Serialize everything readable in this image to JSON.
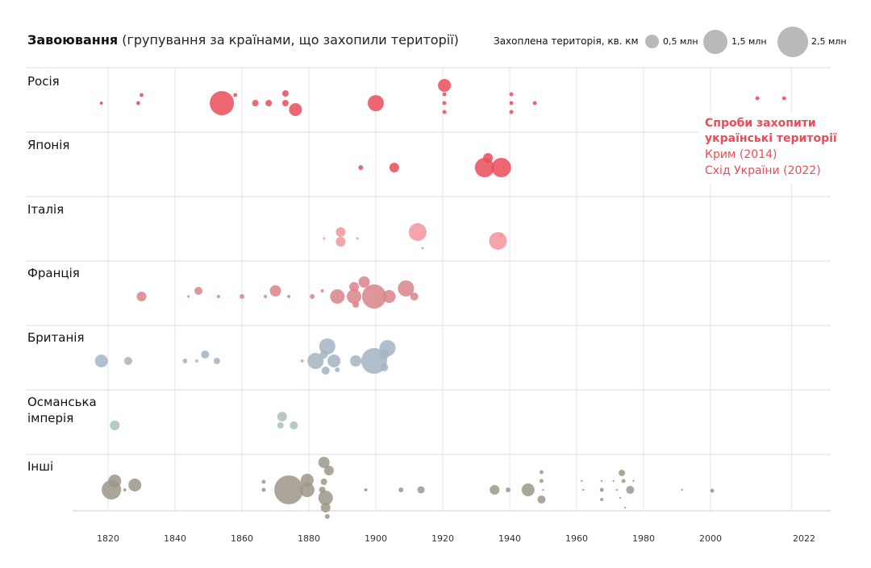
{
  "chart_data": {
    "type": "scatter",
    "title": "Завоювання",
    "subtitle": "(групування за країнами, що захопили території)",
    "xlabel": "",
    "ylabel": "",
    "xlim": [
      1815,
      2030
    ],
    "x_ticks": [
      "1820",
      "1840",
      "1860",
      "1880",
      "1900",
      "1920",
      "1940",
      "1960",
      "1980",
      "2000",
      "2022"
    ],
    "size_legend": {
      "title": "Захоплена територія, кв. км",
      "items": [
        {
          "label": "0,5 млн",
          "value": 0.5
        },
        {
          "label": "1,5 млн",
          "value": 1.5
        },
        {
          "label": "2,5 млн",
          "value": 2.5
        }
      ]
    },
    "annotation": {
      "title": "Спроби захопити українські території",
      "lines": [
        "Крим (2014)",
        "Схід України (2022)"
      ]
    },
    "series": [
      {
        "name": "Росія",
        "color": "#ea4c59",
        "points": [
          {
            "x": 1818,
            "r": 2
          },
          {
            "x": 1829,
            "r": 2.5
          },
          {
            "x": 1830,
            "r": 2.5,
            "dy": -10
          },
          {
            "x": 1854,
            "r": 15
          },
          {
            "x": 1858,
            "r": 2.5,
            "dy": -10
          },
          {
            "x": 1864,
            "r": 4
          },
          {
            "x": 1868,
            "r": 4
          },
          {
            "x": 1873,
            "r": 4
          },
          {
            "x": 1873,
            "r": 4,
            "dy": -12
          },
          {
            "x": 1876,
            "r": 8,
            "dy": 8
          },
          {
            "x": 1900,
            "r": 10
          },
          {
            "x": 1920.5,
            "r": 8,
            "dy": -22
          },
          {
            "x": 1920.5,
            "r": 2.5,
            "dy": -11
          },
          {
            "x": 1920.5,
            "r": 2.5
          },
          {
            "x": 1920.5,
            "r": 2.5,
            "dy": 11
          },
          {
            "x": 1940.5,
            "r": 2.5,
            "dy": -11
          },
          {
            "x": 1940.5,
            "r": 2.5
          },
          {
            "x": 1940.5,
            "r": 2.5,
            "dy": 11
          },
          {
            "x": 1947.5,
            "r": 2.5
          },
          {
            "x": 2014,
            "r": 2.5,
            "dy": -6
          },
          {
            "x": 2022,
            "r": 2.5,
            "dy": -6
          }
        ]
      },
      {
        "name": "Японія",
        "color": "#ea4c59",
        "points": [
          {
            "x": 1895.5,
            "r": 3
          },
          {
            "x": 1905.5,
            "r": 6
          },
          {
            "x": 1933.5,
            "r": 6,
            "dy": -12
          },
          {
            "x": 1932.5,
            "r": 12
          },
          {
            "x": 1937.5,
            "r": 12
          }
        ]
      },
      {
        "name": "Італія",
        "color": "#f4949c",
        "points": [
          {
            "x": 1884.5,
            "r": 1.5,
            "dy": 8
          },
          {
            "x": 1889.5,
            "r": 6
          },
          {
            "x": 1889.5,
            "r": 6,
            "dy": 12
          },
          {
            "x": 1894.5,
            "r": 1.5,
            "dy": 8
          },
          {
            "x": 1912.5,
            "r": 11
          },
          {
            "x": 1914,
            "r": 1.5,
            "dy": 20
          },
          {
            "x": 1936.5,
            "r": 11,
            "dy": 11
          },
          {
            "x": 1937.5,
            "r": 3,
            "dy": 4
          }
        ]
      },
      {
        "name": "Франція",
        "color": "#d9848a",
        "points": [
          {
            "x": 1830,
            "r": 6
          },
          {
            "x": 1844,
            "r": 1.5
          },
          {
            "x": 1847,
            "r": 5,
            "dy": -7
          },
          {
            "x": 1853,
            "r": 2
          },
          {
            "x": 1860,
            "r": 3
          },
          {
            "x": 1867,
            "r": 2
          },
          {
            "x": 1870,
            "r": 7,
            "dy": -7
          },
          {
            "x": 1874,
            "r": 2
          },
          {
            "x": 1881,
            "r": 3
          },
          {
            "x": 1884,
            "r": 2,
            "dy": -7
          },
          {
            "x": 1888.5,
            "r": 9
          },
          {
            "x": 1893.5,
            "r": 6,
            "dy": -12
          },
          {
            "x": 1893.5,
            "r": 9
          },
          {
            "x": 1894,
            "r": 4,
            "dy": 10
          },
          {
            "x": 1896.5,
            "r": 7,
            "dy": -18
          },
          {
            "x": 1899.5,
            "r": 15
          },
          {
            "x": 1904,
            "r": 8
          },
          {
            "x": 1909,
            "r": 10,
            "dy": -10
          },
          {
            "x": 1911.5,
            "r": 5
          }
        ]
      },
      {
        "name": "Британія",
        "color": "#a3b4c3",
        "points": [
          {
            "x": 1818,
            "r": 8
          },
          {
            "x": 1826,
            "r": 5
          },
          {
            "x": 1843,
            "r": 3
          },
          {
            "x": 1846.5,
            "r": 2
          },
          {
            "x": 1849,
            "r": 5,
            "dy": -8
          },
          {
            "x": 1852.5,
            "r": 4
          },
          {
            "x": 1878,
            "r": 2
          },
          {
            "x": 1882,
            "r": 10
          },
          {
            "x": 1884.5,
            "r": 5,
            "dy": -8
          },
          {
            "x": 1885.5,
            "r": 10,
            "dy": -18
          },
          {
            "x": 1885,
            "r": 5,
            "dy": 12
          },
          {
            "x": 1887.5,
            "r": 8
          },
          {
            "x": 1888.5,
            "r": 3,
            "dy": 11
          },
          {
            "x": 1894,
            "r": 7
          },
          {
            "x": 1899.5,
            "r": 16
          },
          {
            "x": 1902.5,
            "r": 5,
            "dy": 8
          },
          {
            "x": 1902.5,
            "r": 6,
            "dy": -8
          },
          {
            "x": 1903.5,
            "r": 10,
            "dy": -16
          }
        ]
      },
      {
        "name": "Османська імперія",
        "color": "#a8c1be",
        "points": [
          {
            "x": 1822,
            "r": 6
          },
          {
            "x": 1871.5,
            "r": 4
          },
          {
            "x": 1872,
            "r": 6,
            "dy": -11
          },
          {
            "x": 1875.5,
            "r": 5
          }
        ]
      },
      {
        "name": "Інші",
        "color": "#9c9787",
        "points": [
          {
            "x": 1821,
            "r": 12
          },
          {
            "x": 1822,
            "r": 8,
            "dy": -11
          },
          {
            "x": 1825,
            "r": 2
          },
          {
            "x": 1828,
            "r": 8,
            "dy": -6
          },
          {
            "x": 1866.5,
            "r": 2.5,
            "dy": -10
          },
          {
            "x": 1866.5,
            "r": 2.5
          },
          {
            "x": 1874,
            "r": 18
          },
          {
            "x": 1879.5,
            "r": 9
          },
          {
            "x": 1879.5,
            "r": 8,
            "dy": -12
          },
          {
            "x": 1884,
            "r": 4
          },
          {
            "x": 1885,
            "r": 9,
            "dy": 10
          },
          {
            "x": 1885,
            "r": 6,
            "dy": 22
          },
          {
            "x": 1885.5,
            "r": 3,
            "dy": 33
          },
          {
            "x": 1884.5,
            "r": 4,
            "dy": -10
          },
          {
            "x": 1886,
            "r": 6,
            "dy": -24
          },
          {
            "x": 1884.5,
            "r": 7,
            "dy": -34
          },
          {
            "x": 1897,
            "r": 2
          },
          {
            "x": 1907.5,
            "r": 3
          },
          {
            "x": 1913.5,
            "r": 4.5
          },
          {
            "x": 1935.5,
            "r": 6
          },
          {
            "x": 1939.5,
            "r": 3
          },
          {
            "x": 1945.5,
            "r": 8
          },
          {
            "x": 1949.5,
            "r": 5,
            "dy": 12
          },
          {
            "x": 1949.5,
            "r": 2.5,
            "dy": -11
          },
          {
            "x": 1949.5,
            "r": 2.5,
            "dy": -22
          },
          {
            "x": 1950,
            "r": 1.2
          },
          {
            "x": 1961.5,
            "r": 1.2,
            "dy": -11
          },
          {
            "x": 1962,
            "r": 1.2
          },
          {
            "x": 1967.5,
            "r": 2.5
          },
          {
            "x": 1967.5,
            "r": 2,
            "dy": 12
          },
          {
            "x": 1967.5,
            "r": 1.2,
            "dy": -11
          },
          {
            "x": 1971,
            "r": 1.2,
            "dy": -11
          },
          {
            "x": 1972,
            "r": 1.2
          },
          {
            "x": 1973,
            "r": 1.2,
            "dy": 10
          },
          {
            "x": 1973.5,
            "r": 4,
            "dy": -21
          },
          {
            "x": 1974,
            "r": 2.5,
            "dy": -11
          },
          {
            "x": 1974.5,
            "r": 1.2,
            "dy": 22
          },
          {
            "x": 1976,
            "r": 5
          },
          {
            "x": 1977,
            "r": 1.2,
            "dy": -11
          },
          {
            "x": 1991.5,
            "r": 1.2
          },
          {
            "x": 2000.5,
            "r": 2.5,
            "dy": 1
          }
        ]
      }
    ]
  }
}
